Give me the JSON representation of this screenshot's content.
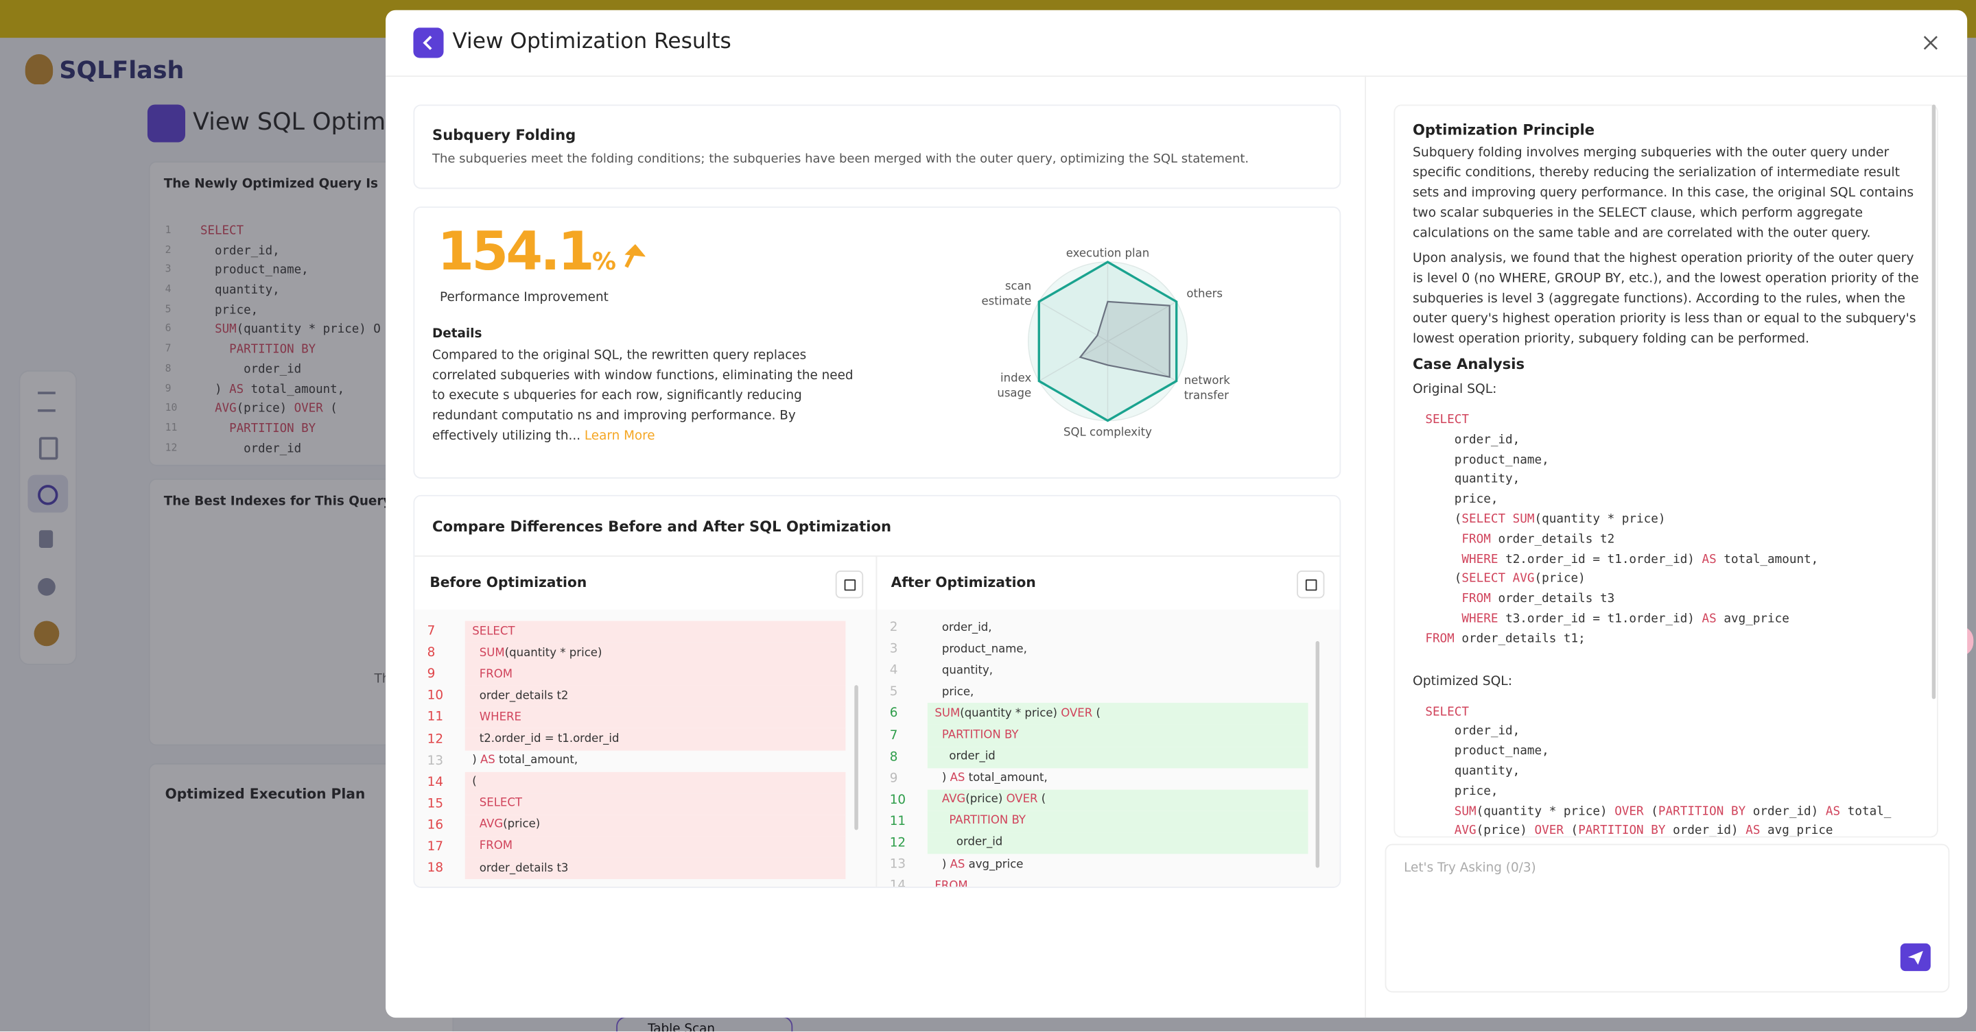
{
  "background": {
    "brand": "SQLFlash",
    "page_title": "View SQL Optimiza",
    "optimized_query_title": "The Newly Optimized Query Is",
    "code": [
      {
        "n": 1,
        "code": [
          {
            "keyword": "SELECT"
          }
        ]
      },
      {
        "n": 2,
        "code": [
          "  order_id,"
        ]
      },
      {
        "n": 3,
        "code": [
          "  product_name,"
        ]
      },
      {
        "n": 4,
        "code": [
          "  quantity,"
        ]
      },
      {
        "n": 5,
        "code": [
          "  price,"
        ]
      },
      {
        "n": 6,
        "code": [
          "  ",
          {
            "keyword": "SUM"
          },
          "(quantity * price) O"
        ]
      },
      {
        "n": 7,
        "code": [
          "    ",
          {
            "keyword": "PARTITION BY"
          }
        ]
      },
      {
        "n": 8,
        "code": [
          "      order_id"
        ]
      },
      {
        "n": 9,
        "code": [
          "  ) ",
          {
            "keyword": "AS"
          },
          " total_amount,"
        ]
      },
      {
        "n": 10,
        "code": [
          "  ",
          {
            "keyword": "AVG"
          },
          "(price) ",
          {
            "keyword": "OVER"
          },
          " ("
        ]
      },
      {
        "n": 11,
        "code": [
          "    ",
          {
            "keyword": "PARTITION BY"
          }
        ]
      },
      {
        "n": 12,
        "code": [
          "      order_id"
        ]
      }
    ],
    "indexes_title": "The Best Indexes for This Query Are",
    "indexes_fragment": "Th",
    "plan_title": "Optimized Execution Plan",
    "plan_node": "Table Scan"
  },
  "modal": {
    "title": "View Optimization Results",
    "rule": {
      "title": "Subquery Folding",
      "description": "The subqueries meet the folding conditions; the subqueries have been merged with the outer query, optimizing the SQL statement."
    },
    "performance": {
      "value": "154.1",
      "unit": "%",
      "label": "Performance Improvement",
      "details_title": "Details",
      "details": "Compared to the original SQL, the rewritten query replaces correlated subqueries with window functions, eliminating the need to execute s ubqueries for each row, significantly reducing redundant computatio ns and improving performance. By effectively utilizing th...",
      "learn_more": "Learn More"
    },
    "radar": {
      "axes": [
        "execution plan",
        "others",
        "network transfer",
        "SQL complexity",
        "index usage",
        "scan estimate"
      ],
      "rlim": [
        0,
        100
      ],
      "series": [
        {
          "color": "#1aa38f",
          "values": [
            100,
            100,
            100,
            100,
            100,
            100
          ]
        },
        {
          "color": "#6b7280",
          "values": [
            50,
            90,
            90,
            30,
            40,
            15
          ]
        }
      ]
    },
    "compare": {
      "title": "Compare Differences Before and After SQL Optimization",
      "before": {
        "title": "Before Optimization",
        "lines": [
          {
            "n": 7,
            "changed": true,
            "code": [
              "  ",
              {
                "keyword": "SELECT"
              }
            ]
          },
          {
            "n": 8,
            "changed": true,
            "code": [
              "    ",
              {
                "keyword": "SUM"
              },
              "(quantity * price)"
            ]
          },
          {
            "n": 9,
            "changed": true,
            "code": [
              "    ",
              {
                "keyword": "FROM"
              }
            ]
          },
          {
            "n": 10,
            "changed": true,
            "code": [
              "    order_details t2"
            ]
          },
          {
            "n": 11,
            "changed": true,
            "code": [
              "    ",
              {
                "keyword": "WHERE"
              }
            ]
          },
          {
            "n": 12,
            "changed": true,
            "code": [
              "    t2.order_id = t1.order_id"
            ]
          },
          {
            "n": 13,
            "changed": false,
            "code": [
              "  ) ",
              {
                "keyword": "AS"
              },
              " total_amount,"
            ]
          },
          {
            "n": 14,
            "changed": true,
            "code": [
              "  ("
            ]
          },
          {
            "n": 15,
            "changed": true,
            "code": [
              "    ",
              {
                "keyword": "SELECT"
              }
            ]
          },
          {
            "n": 16,
            "changed": true,
            "code": [
              "    ",
              {
                "keyword": "AVG"
              },
              "(price)"
            ]
          },
          {
            "n": 17,
            "changed": true,
            "code": [
              "    ",
              {
                "keyword": "FROM"
              }
            ]
          },
          {
            "n": 18,
            "changed": true,
            "code": [
              "    order_details t3"
            ]
          }
        ]
      },
      "after": {
        "title": "After Optimization",
        "lines": [
          {
            "n": 2,
            "changed": false,
            "code": [
              "    order_id,"
            ]
          },
          {
            "n": 3,
            "changed": false,
            "code": [
              "    product_name,"
            ]
          },
          {
            "n": 4,
            "changed": false,
            "code": [
              "    quantity,"
            ]
          },
          {
            "n": 5,
            "changed": false,
            "code": [
              "    price,"
            ]
          },
          {
            "n": 6,
            "changed": true,
            "code": [
              "  ",
              {
                "keyword": "SUM"
              },
              "(quantity * price) ",
              {
                "keyword": "OVER"
              },
              " ("
            ]
          },
          {
            "n": 7,
            "changed": true,
            "code": [
              "    ",
              {
                "keyword": "PARTITION BY"
              }
            ]
          },
          {
            "n": 8,
            "changed": true,
            "code": [
              "      order_id"
            ]
          },
          {
            "n": 9,
            "changed": false,
            "code": [
              "    ) ",
              {
                "keyword": "AS"
              },
              " total_amount,"
            ]
          },
          {
            "n": 10,
            "changed": true,
            "code": [
              "    ",
              {
                "keyword": "AVG"
              },
              "(price) ",
              {
                "keyword": "OVER"
              },
              " ("
            ]
          },
          {
            "n": 11,
            "changed": true,
            "code": [
              "      ",
              {
                "keyword": "PARTITION BY"
              }
            ]
          },
          {
            "n": 12,
            "changed": true,
            "code": [
              "        order_id"
            ]
          },
          {
            "n": 13,
            "changed": false,
            "code": [
              "    ) ",
              {
                "keyword": "AS"
              },
              " avg_price"
            ]
          },
          {
            "n": 14,
            "changed": false,
            "code": [
              "  ",
              {
                "keyword": "FROM"
              }
            ]
          }
        ]
      }
    },
    "principle": {
      "title": "Optimization Principle",
      "paragraphs": [
        "Subquery folding involves merging subqueries with the outer query under specific conditions, thereby reducing the serialization of intermediate result sets and improving query performance. In this case, the original SQL contains two scalar subqueries in the SELECT clause, which perform aggregate calculations on the same table and are correlated with the outer query.",
        "Upon analysis, we found that the highest operation priority of the outer query is level 0 (no WHERE, GROUP BY, etc.), and the lowest operation priority of the subqueries is level 3 (aggregate functions). According to the rules, when the outer query's highest operation priority is less than or equal to the subquery's lowest operation priority, subquery folding can be performed."
      ],
      "case_title": "Case Analysis",
      "original_label": "Original SQL:",
      "original_sql": [
        [
          {
            "keyword": "SELECT"
          }
        ],
        [
          "    order_id,"
        ],
        [
          "    product_name,"
        ],
        [
          "    quantity,"
        ],
        [
          "    price,"
        ],
        [
          "    (",
          {
            "keyword": "SELECT"
          },
          " ",
          {
            "keyword": "SUM"
          },
          "(quantity * price)"
        ],
        [
          "     ",
          {
            "keyword": "FROM"
          },
          " order_details t2"
        ],
        [
          "     ",
          {
            "keyword": "WHERE"
          },
          " t2.order_id = t1.order_id) ",
          {
            "keyword": "AS"
          },
          " total_amount,"
        ],
        [
          "    (",
          {
            "keyword": "SELECT"
          },
          " ",
          {
            "keyword": "AVG"
          },
          "(price)"
        ],
        [
          "     ",
          {
            "keyword": "FROM"
          },
          " order_details t3"
        ],
        [
          "     ",
          {
            "keyword": "WHERE"
          },
          " t3.order_id = t1.order_id) ",
          {
            "keyword": "AS"
          },
          " avg_price"
        ],
        [
          {
            "keyword": "FROM"
          },
          " order_details t1;"
        ]
      ],
      "optimized_label": "Optimized SQL:",
      "optimized_sql": [
        [
          {
            "keyword": "SELECT"
          }
        ],
        [
          "    order_id,"
        ],
        [
          "    product_name,"
        ],
        [
          "    quantity,"
        ],
        [
          "    price,"
        ],
        [
          "    ",
          {
            "keyword": "SUM"
          },
          "(quantity * price) ",
          {
            "keyword": "OVER"
          },
          " (",
          {
            "keyword": "PARTITION BY"
          },
          " order_id) ",
          {
            "keyword": "AS"
          },
          " total_"
        ],
        [
          "    ",
          {
            "keyword": "AVG"
          },
          "(price) ",
          {
            "keyword": "OVER"
          },
          " (",
          {
            "keyword": "PARTITION BY"
          },
          " order_id) ",
          {
            "keyword": "AS"
          },
          " avg_price"
        ]
      ]
    },
    "ask_placeholder": "Let's Try Asking (0/3)"
  }
}
